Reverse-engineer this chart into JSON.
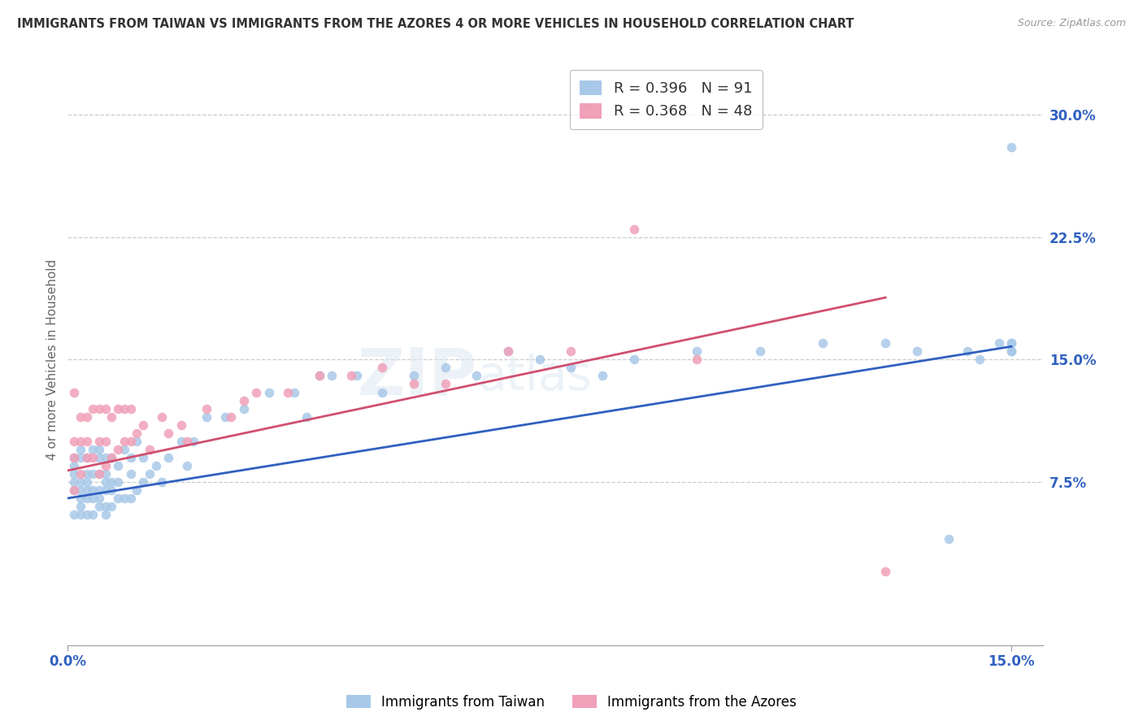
{
  "title": "IMMIGRANTS FROM TAIWAN VS IMMIGRANTS FROM THE AZORES 4 OR MORE VEHICLES IN HOUSEHOLD CORRELATION CHART",
  "source": "Source: ZipAtlas.com",
  "ylabel": "4 or more Vehicles in Household",
  "xlim": [
    0.0,
    0.155
  ],
  "ylim": [
    -0.025,
    0.325
  ],
  "ytick_positions": [
    0.075,
    0.15,
    0.225,
    0.3
  ],
  "ytick_labels": [
    "7.5%",
    "15.0%",
    "22.5%",
    "30.0%"
  ],
  "xtick_positions": [
    0.0,
    0.15
  ],
  "xtick_labels": [
    "0.0%",
    "15.0%"
  ],
  "background_color": "#ffffff",
  "grid_color": "#cccccc",
  "taiwan_color": "#a8c8e8",
  "azores_color": "#f0a0b8",
  "taiwan_line_color": "#3060c0",
  "azores_line_color": "#d05070",
  "taiwan_R": 0.396,
  "taiwan_N": 91,
  "azores_R": 0.368,
  "azores_N": 48,
  "taiwan_line_x0": 0.0,
  "taiwan_line_y0": 0.065,
  "taiwan_line_x1": 0.15,
  "taiwan_line_y1": 0.158,
  "azores_line_x0": 0.0,
  "azores_line_y0": 0.082,
  "azores_line_x1": 0.13,
  "azores_line_y1": 0.188,
  "taiwan_x": [
    0.001,
    0.001,
    0.001,
    0.001,
    0.001,
    0.001,
    0.002,
    0.002,
    0.002,
    0.002,
    0.002,
    0.002,
    0.002,
    0.003,
    0.003,
    0.003,
    0.003,
    0.003,
    0.003,
    0.004,
    0.004,
    0.004,
    0.004,
    0.004,
    0.005,
    0.005,
    0.005,
    0.005,
    0.005,
    0.005,
    0.006,
    0.006,
    0.006,
    0.006,
    0.006,
    0.006,
    0.007,
    0.007,
    0.007,
    0.007,
    0.008,
    0.008,
    0.008,
    0.009,
    0.009,
    0.01,
    0.01,
    0.01,
    0.011,
    0.011,
    0.012,
    0.012,
    0.013,
    0.014,
    0.015,
    0.016,
    0.018,
    0.019,
    0.02,
    0.022,
    0.025,
    0.028,
    0.032,
    0.036,
    0.038,
    0.04,
    0.042,
    0.046,
    0.05,
    0.055,
    0.06,
    0.065,
    0.07,
    0.075,
    0.08,
    0.085,
    0.09,
    0.1,
    0.11,
    0.12,
    0.13,
    0.135,
    0.14,
    0.143,
    0.145,
    0.148,
    0.15,
    0.15,
    0.15,
    0.15,
    0.15
  ],
  "taiwan_y": [
    0.055,
    0.07,
    0.075,
    0.08,
    0.085,
    0.09,
    0.055,
    0.06,
    0.065,
    0.07,
    0.075,
    0.09,
    0.095,
    0.055,
    0.065,
    0.07,
    0.075,
    0.08,
    0.09,
    0.055,
    0.065,
    0.07,
    0.08,
    0.095,
    0.06,
    0.065,
    0.07,
    0.08,
    0.09,
    0.095,
    0.055,
    0.06,
    0.07,
    0.075,
    0.08,
    0.09,
    0.06,
    0.07,
    0.075,
    0.09,
    0.065,
    0.075,
    0.085,
    0.065,
    0.095,
    0.065,
    0.08,
    0.09,
    0.07,
    0.1,
    0.075,
    0.09,
    0.08,
    0.085,
    0.075,
    0.09,
    0.1,
    0.085,
    0.1,
    0.115,
    0.115,
    0.12,
    0.13,
    0.13,
    0.115,
    0.14,
    0.14,
    0.14,
    0.13,
    0.14,
    0.145,
    0.14,
    0.155,
    0.15,
    0.145,
    0.14,
    0.15,
    0.155,
    0.155,
    0.16,
    0.16,
    0.155,
    0.04,
    0.155,
    0.15,
    0.16,
    0.155,
    0.16,
    0.28,
    0.155,
    0.16
  ],
  "azores_x": [
    0.001,
    0.001,
    0.001,
    0.001,
    0.002,
    0.002,
    0.002,
    0.003,
    0.003,
    0.003,
    0.004,
    0.004,
    0.005,
    0.005,
    0.005,
    0.006,
    0.006,
    0.006,
    0.007,
    0.007,
    0.008,
    0.008,
    0.009,
    0.009,
    0.01,
    0.01,
    0.011,
    0.012,
    0.013,
    0.015,
    0.016,
    0.018,
    0.019,
    0.022,
    0.026,
    0.028,
    0.03,
    0.035,
    0.04,
    0.045,
    0.05,
    0.055,
    0.06,
    0.07,
    0.08,
    0.09,
    0.1,
    0.13
  ],
  "azores_y": [
    0.07,
    0.09,
    0.1,
    0.13,
    0.08,
    0.1,
    0.115,
    0.09,
    0.1,
    0.115,
    0.09,
    0.12,
    0.08,
    0.1,
    0.12,
    0.085,
    0.1,
    0.12,
    0.09,
    0.115,
    0.095,
    0.12,
    0.1,
    0.12,
    0.1,
    0.12,
    0.105,
    0.11,
    0.095,
    0.115,
    0.105,
    0.11,
    0.1,
    0.12,
    0.115,
    0.125,
    0.13,
    0.13,
    0.14,
    0.14,
    0.145,
    0.135,
    0.135,
    0.155,
    0.155,
    0.23,
    0.15,
    0.02
  ]
}
